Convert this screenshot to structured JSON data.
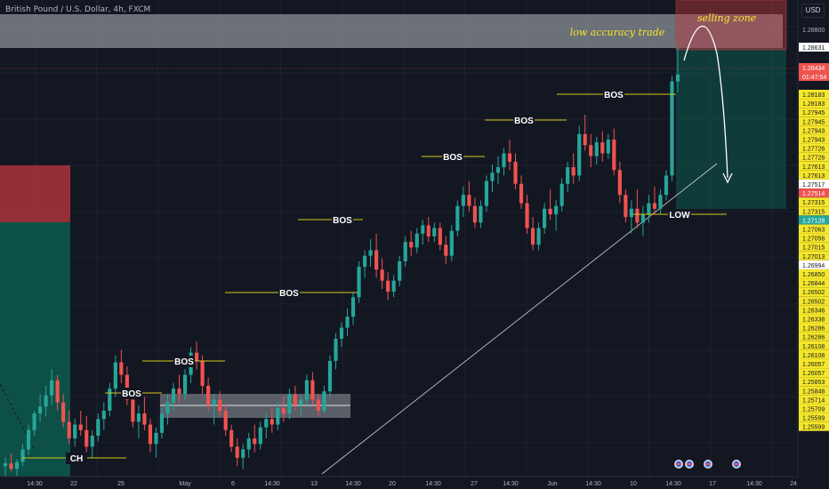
{
  "header": {
    "symbol_title": "British Pound / U.S. Dollar, 4h, FXCM",
    "currency": "USD"
  },
  "annotations": {
    "low_accuracy": "low accuracy trade",
    "selling_zone": "selling zone",
    "bos": "BOS",
    "ch": "CH",
    "low": "LOW"
  },
  "colors": {
    "bg": "#131722",
    "up": "#26a69a",
    "down": "#ef5350",
    "level": "#d4c81a",
    "label_yellow": "#f5e72a",
    "zone_red": "#c2383f",
    "zone_green": "#0d5a4e",
    "grey_zone": "#8a8d96"
  },
  "chart_data": {
    "type": "candlestick",
    "instrument": "GBP/USD",
    "timeframe": "4h",
    "x_ticks": [
      "14:30",
      "22",
      "25",
      "May",
      "6",
      "14:30",
      "13",
      "14:30",
      "20",
      "14:30",
      "27",
      "14:30",
      "Jun",
      "14:30",
      "10",
      "14:30",
      "17",
      "14:30",
      "24"
    ],
    "price_labels": [
      {
        "value": "1.28800",
        "style": "plain"
      },
      {
        "value": "1.28631",
        "style": "white"
      },
      {
        "value": "1.28434",
        "style": "red"
      },
      {
        "value": "01:47:54",
        "style": "red"
      },
      {
        "value": "1.28183",
        "style": "yellow"
      },
      {
        "value": "1.28183",
        "style": "yellow"
      },
      {
        "value": "1.27945",
        "style": "yellow"
      },
      {
        "value": "1.27945",
        "style": "yellow"
      },
      {
        "value": "1.27943",
        "style": "yellow"
      },
      {
        "value": "1.27943",
        "style": "yellow"
      },
      {
        "value": "1.27726",
        "style": "yellow"
      },
      {
        "value": "1.27726",
        "style": "yellow"
      },
      {
        "value": "1.27613",
        "style": "yellow"
      },
      {
        "value": "1.27613",
        "style": "yellow"
      },
      {
        "value": "1.27517",
        "style": "white"
      },
      {
        "value": "1.27514",
        "style": "red"
      },
      {
        "value": "1.27315",
        "style": "yellow"
      },
      {
        "value": "1.27315",
        "style": "yellow"
      },
      {
        "value": "1.27128",
        "style": "teal"
      },
      {
        "value": "1.27063",
        "style": "yellow"
      },
      {
        "value": "1.27056",
        "style": "yellow"
      },
      {
        "value": "1.27015",
        "style": "yellow"
      },
      {
        "value": "1.27013",
        "style": "yellow"
      },
      {
        "value": "1.26994",
        "style": "white"
      },
      {
        "value": "1.26850",
        "style": "yellow"
      },
      {
        "value": "1.26844",
        "style": "yellow"
      },
      {
        "value": "1.26502",
        "style": "yellow"
      },
      {
        "value": "1.26502",
        "style": "yellow"
      },
      {
        "value": "1.26346",
        "style": "yellow"
      },
      {
        "value": "1.26338",
        "style": "yellow"
      },
      {
        "value": "1.26286",
        "style": "yellow"
      },
      {
        "value": "1.26286",
        "style": "yellow"
      },
      {
        "value": "1.26108",
        "style": "yellow"
      },
      {
        "value": "1.26108",
        "style": "yellow"
      },
      {
        "value": "1.26057",
        "style": "yellow"
      },
      {
        "value": "1.26057",
        "style": "yellow"
      },
      {
        "value": "1.25853",
        "style": "yellow"
      },
      {
        "value": "1.25848",
        "style": "yellow"
      },
      {
        "value": "1.25714",
        "style": "yellow"
      },
      {
        "value": "1.25709",
        "style": "yellow"
      },
      {
        "value": "1.25599",
        "style": "yellow"
      },
      {
        "value": "1.25599",
        "style": "yellow"
      }
    ],
    "price_range": [
      1.2555,
      1.2893
    ],
    "candles": [
      [
        1.256,
        1.2566,
        1.2553,
        1.2562
      ],
      [
        1.2562,
        1.2569,
        1.2556,
        1.2558
      ],
      [
        1.2558,
        1.2565,
        1.2552,
        1.2563
      ],
      [
        1.2563,
        1.2576,
        1.256,
        1.2572
      ],
      [
        1.2572,
        1.259,
        1.2568,
        1.2586
      ],
      [
        1.2586,
        1.26,
        1.2582,
        1.2598
      ],
      [
        1.2598,
        1.2612,
        1.2592,
        1.2603
      ],
      [
        1.2603,
        1.2618,
        1.2596,
        1.2611
      ],
      [
        1.2611,
        1.263,
        1.2604,
        1.2622
      ],
      [
        1.2622,
        1.2626,
        1.26,
        1.2606
      ],
      [
        1.2606,
        1.2612,
        1.2588,
        1.2592
      ],
      [
        1.2592,
        1.26,
        1.2576,
        1.258
      ],
      [
        1.258,
        1.2594,
        1.2574,
        1.259
      ],
      [
        1.259,
        1.26,
        1.2582,
        1.2586
      ],
      [
        1.2586,
        1.2596,
        1.257,
        1.2574
      ],
      [
        1.2574,
        1.2586,
        1.2566,
        1.2582
      ],
      [
        1.2582,
        1.2598,
        1.2578,
        1.2594
      ],
      [
        1.2594,
        1.2606,
        1.2586,
        1.26
      ],
      [
        1.26,
        1.262,
        1.2596,
        1.2616
      ],
      [
        1.2616,
        1.264,
        1.261,
        1.2635
      ],
      [
        1.2635,
        1.2644,
        1.262,
        1.2626
      ],
      [
        1.2626,
        1.2632,
        1.2604,
        1.2608
      ],
      [
        1.2608,
        1.2612,
        1.2588,
        1.2592
      ],
      [
        1.2592,
        1.2604,
        1.258,
        1.2598
      ],
      [
        1.2598,
        1.261,
        1.2586,
        1.259
      ],
      [
        1.259,
        1.2594,
        1.257,
        1.2576
      ],
      [
        1.2576,
        1.2588,
        1.2566,
        1.2584
      ],
      [
        1.2584,
        1.2602,
        1.258,
        1.2598
      ],
      [
        1.2598,
        1.2612,
        1.259,
        1.2606
      ],
      [
        1.2606,
        1.262,
        1.26,
        1.2616
      ],
      [
        1.2616,
        1.2626,
        1.2606,
        1.2612
      ],
      [
        1.2612,
        1.263,
        1.2608,
        1.2626
      ],
      [
        1.2626,
        1.2646,
        1.262,
        1.2642
      ],
      [
        1.2642,
        1.265,
        1.263,
        1.2636
      ],
      [
        1.2636,
        1.264,
        1.2612,
        1.2618
      ],
      [
        1.2618,
        1.2624,
        1.26,
        1.2604
      ],
      [
        1.2604,
        1.2612,
        1.259,
        1.2608
      ],
      [
        1.2608,
        1.2614,
        1.2596,
        1.26
      ],
      [
        1.26,
        1.2604,
        1.2582,
        1.2586
      ],
      [
        1.2586,
        1.259,
        1.257,
        1.2574
      ],
      [
        1.2574,
        1.258,
        1.256,
        1.2566
      ],
      [
        1.2566,
        1.2576,
        1.2558,
        1.2572
      ],
      [
        1.2572,
        1.2584,
        1.2566,
        1.258
      ],
      [
        1.258,
        1.259,
        1.257,
        1.2576
      ],
      [
        1.2576,
        1.2592,
        1.2572,
        1.2588
      ],
      [
        1.2588,
        1.2598,
        1.258,
        1.2594
      ],
      [
        1.2594,
        1.2602,
        1.2584,
        1.259
      ],
      [
        1.259,
        1.2606,
        1.2586,
        1.2602
      ],
      [
        1.2602,
        1.261,
        1.2592,
        1.2598
      ],
      [
        1.2598,
        1.2616,
        1.2594,
        1.2612
      ],
      [
        1.2612,
        1.2618,
        1.26,
        1.2604
      ],
      [
        1.2604,
        1.2612,
        1.2596,
        1.2608
      ],
      [
        1.2608,
        1.2626,
        1.2604,
        1.2622
      ],
      [
        1.2622,
        1.2628,
        1.2604,
        1.2608
      ],
      [
        1.2608,
        1.2612,
        1.2596,
        1.26
      ],
      [
        1.26,
        1.2618,
        1.2598,
        1.2614
      ],
      [
        1.2614,
        1.264,
        1.261,
        1.2636
      ],
      [
        1.2636,
        1.2656,
        1.263,
        1.2652
      ],
      [
        1.2652,
        1.2664,
        1.2646,
        1.266
      ],
      [
        1.266,
        1.2674,
        1.2654,
        1.2668
      ],
      [
        1.2668,
        1.2686,
        1.2662,
        1.2682
      ],
      [
        1.2682,
        1.2708,
        1.2678,
        1.2704
      ],
      [
        1.2704,
        1.2716,
        1.2696,
        1.2712
      ],
      [
        1.2712,
        1.2724,
        1.2704,
        1.2716
      ],
      [
        1.2716,
        1.2728,
        1.2696,
        1.2702
      ],
      [
        1.2702,
        1.271,
        1.2688,
        1.2694
      ],
      [
        1.2694,
        1.27,
        1.268,
        1.2686
      ],
      [
        1.2686,
        1.2698,
        1.2682,
        1.2694
      ],
      [
        1.2694,
        1.2712,
        1.269,
        1.2708
      ],
      [
        1.2708,
        1.2726,
        1.2704,
        1.2722
      ],
      [
        1.2722,
        1.273,
        1.2712,
        1.2718
      ],
      [
        1.2718,
        1.2732,
        1.2714,
        1.2728
      ],
      [
        1.2728,
        1.2738,
        1.272,
        1.2734
      ],
      [
        1.2734,
        1.274,
        1.2722,
        1.2726
      ],
      [
        1.2726,
        1.2736,
        1.2722,
        1.2732
      ],
      [
        1.2732,
        1.2736,
        1.2716,
        1.272
      ],
      [
        1.272,
        1.2726,
        1.2706,
        1.2712
      ],
      [
        1.2712,
        1.2734,
        1.2708,
        1.273
      ],
      [
        1.273,
        1.2752,
        1.2726,
        1.2748
      ],
      [
        1.2748,
        1.2762,
        1.274,
        1.2756
      ],
      [
        1.2756,
        1.2766,
        1.2744,
        1.2748
      ],
      [
        1.2748,
        1.2754,
        1.2732,
        1.2736
      ],
      [
        1.2736,
        1.2752,
        1.2732,
        1.2748
      ],
      [
        1.2748,
        1.277,
        1.2744,
        1.2766
      ],
      [
        1.2766,
        1.2778,
        1.2758,
        1.2772
      ],
      [
        1.2772,
        1.2784,
        1.2764,
        1.2776
      ],
      [
        1.2776,
        1.279,
        1.277,
        1.2786
      ],
      [
        1.2786,
        1.2796,
        1.2774,
        1.278
      ],
      [
        1.278,
        1.2786,
        1.276,
        1.2764
      ],
      [
        1.2764,
        1.277,
        1.2746,
        1.275
      ],
      [
        1.275,
        1.2756,
        1.2728,
        1.2732
      ],
      [
        1.2732,
        1.274,
        1.2716,
        1.272
      ],
      [
        1.272,
        1.2736,
        1.2716,
        1.2732
      ],
      [
        1.2732,
        1.275,
        1.2728,
        1.2746
      ],
      [
        1.2746,
        1.276,
        1.2738,
        1.2742
      ],
      [
        1.2742,
        1.2752,
        1.273,
        1.2748
      ],
      [
        1.2748,
        1.2768,
        1.2744,
        1.2764
      ],
      [
        1.2764,
        1.278,
        1.2758,
        1.2776
      ],
      [
        1.2776,
        1.2786,
        1.2764,
        1.277
      ],
      [
        1.277,
        1.2806,
        1.2766,
        1.28
      ],
      [
        1.28,
        1.2814,
        1.2788,
        1.2792
      ],
      [
        1.2792,
        1.28,
        1.2776,
        1.2784
      ],
      [
        1.2784,
        1.2798,
        1.2778,
        1.2794
      ],
      [
        1.2794,
        1.2802,
        1.278,
        1.2786
      ],
      [
        1.2786,
        1.28,
        1.2782,
        1.2796
      ],
      [
        1.2796,
        1.2804,
        1.277,
        1.2774
      ],
      [
        1.2774,
        1.278,
        1.275,
        1.2756
      ],
      [
        1.2756,
        1.276,
        1.2736,
        1.274
      ],
      [
        1.274,
        1.2752,
        1.2728,
        1.2746
      ],
      [
        1.2746,
        1.276,
        1.2732,
        1.2736
      ],
      [
        1.2736,
        1.2748,
        1.2726,
        1.2742
      ],
      [
        1.2742,
        1.2756,
        1.2736,
        1.275
      ],
      [
        1.275,
        1.2762,
        1.2742,
        1.2746
      ],
      [
        1.2746,
        1.276,
        1.2742,
        1.2756
      ],
      [
        1.2756,
        1.2774,
        1.2752,
        1.277
      ],
      [
        1.277,
        1.2842,
        1.2766,
        1.2838
      ],
      [
        1.2838,
        1.2864,
        1.283,
        1.2843
      ]
    ]
  }
}
